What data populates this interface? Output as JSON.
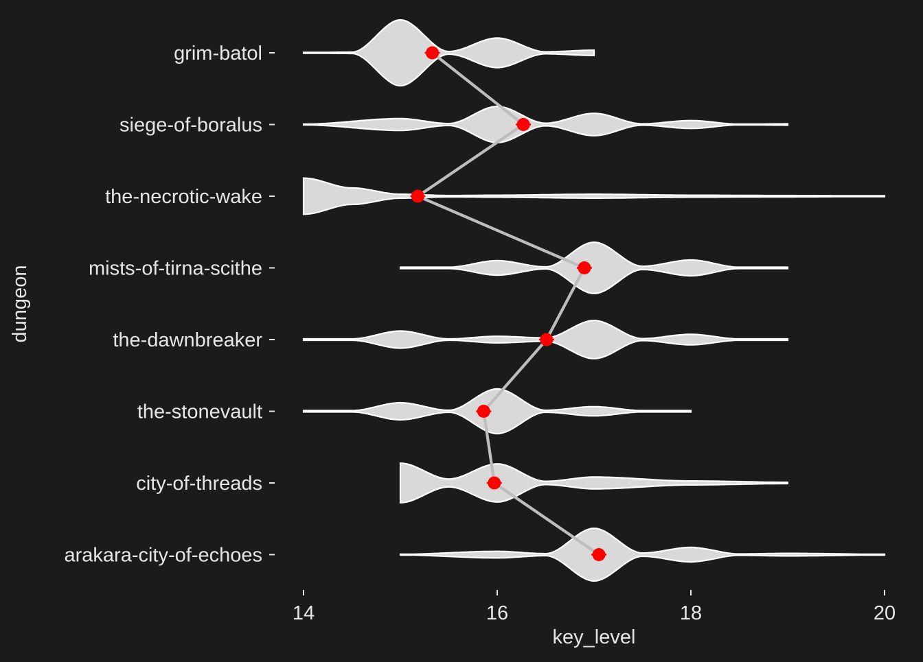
{
  "chart_data": {
    "type": "violin",
    "title": "",
    "xlabel": "key_level",
    "ylabel": "dungeon",
    "xlim": [
      14,
      20
    ],
    "x_ticks": [
      14,
      16,
      18,
      20
    ],
    "grid": false,
    "legend": "none",
    "colors": {
      "background": "#1b1b1b",
      "text": "#e6e6e6",
      "violin_fill": "#d9d9d9",
      "violin_outline": "#ffffff",
      "mean_line": "#bdbdbd",
      "mean_point": "#ff0000"
    },
    "categories": [
      "grim-batol",
      "siege-of-boralus",
      "the-necrotic-wake",
      "mists-of-tirna-scithe",
      "the-dawnbreaker",
      "the-stonevault",
      "city-of-threads",
      "arakara-city-of-echoes"
    ],
    "means": [
      15.33,
      16.27,
      15.18,
      16.9,
      16.51,
      15.86,
      15.97,
      17.05
    ],
    "violins": [
      {
        "range": [
          14,
          17
        ],
        "density": [
          [
            14,
            0.01
          ],
          [
            14.5,
            0.02
          ],
          [
            15,
            1.0
          ],
          [
            15.5,
            0.04
          ],
          [
            16,
            0.45
          ],
          [
            16.5,
            0.03
          ],
          [
            17,
            0.08
          ]
        ]
      },
      {
        "range": [
          14,
          19
        ],
        "density": [
          [
            14,
            0.01
          ],
          [
            15,
            0.18
          ],
          [
            15.5,
            0.03
          ],
          [
            16,
            0.55
          ],
          [
            16.5,
            0.04
          ],
          [
            17,
            0.34
          ],
          [
            17.5,
            0.02
          ],
          [
            18,
            0.12
          ],
          [
            18.5,
            0.01
          ],
          [
            19,
            0.02
          ]
        ]
      },
      {
        "range": [
          14,
          20
        ],
        "density": [
          [
            14,
            0.55
          ],
          [
            14.5,
            0.25
          ],
          [
            15,
            0.06
          ],
          [
            15.5,
            0.02
          ],
          [
            16,
            0.03
          ],
          [
            17,
            0.06
          ],
          [
            18,
            0.03
          ],
          [
            19,
            0.02
          ],
          [
            20,
            0.01
          ]
        ]
      },
      {
        "range": [
          15,
          19
        ],
        "density": [
          [
            15,
            0.02
          ],
          [
            15.5,
            0.02
          ],
          [
            16,
            0.22
          ],
          [
            16.5,
            0.03
          ],
          [
            17,
            0.78
          ],
          [
            17.5,
            0.05
          ],
          [
            18,
            0.24
          ],
          [
            18.5,
            0.02
          ],
          [
            19,
            0.02
          ]
        ]
      },
      {
        "range": [
          14,
          19
        ],
        "density": [
          [
            14,
            0.02
          ],
          [
            14.5,
            0.02
          ],
          [
            15,
            0.26
          ],
          [
            15.5,
            0.02
          ],
          [
            16,
            0.1
          ],
          [
            16.5,
            0.05
          ],
          [
            17,
            0.58
          ],
          [
            17.5,
            0.03
          ],
          [
            18,
            0.16
          ],
          [
            18.5,
            0.02
          ],
          [
            19,
            0.02
          ]
        ]
      },
      {
        "range": [
          14,
          18
        ],
        "density": [
          [
            14,
            0.02
          ],
          [
            14.5,
            0.02
          ],
          [
            15,
            0.26
          ],
          [
            15.5,
            0.03
          ],
          [
            16,
            0.68
          ],
          [
            16.5,
            0.03
          ],
          [
            17,
            0.14
          ],
          [
            17.5,
            0.02
          ],
          [
            18,
            0.02
          ]
        ]
      },
      {
        "range": [
          15,
          19
        ],
        "density": [
          [
            15,
            0.6
          ],
          [
            15.5,
            0.12
          ],
          [
            16,
            0.58
          ],
          [
            16.5,
            0.05
          ],
          [
            17,
            0.18
          ],
          [
            18,
            0.06
          ],
          [
            19,
            0.02
          ]
        ]
      },
      {
        "range": [
          15,
          20
        ],
        "density": [
          [
            15,
            0.01
          ],
          [
            16,
            0.1
          ],
          [
            16.5,
            0.03
          ],
          [
            17,
            0.8
          ],
          [
            17.5,
            0.05
          ],
          [
            18,
            0.22
          ],
          [
            18.5,
            0.02
          ],
          [
            19,
            0.04
          ],
          [
            20,
            0.01
          ]
        ]
      }
    ]
  }
}
